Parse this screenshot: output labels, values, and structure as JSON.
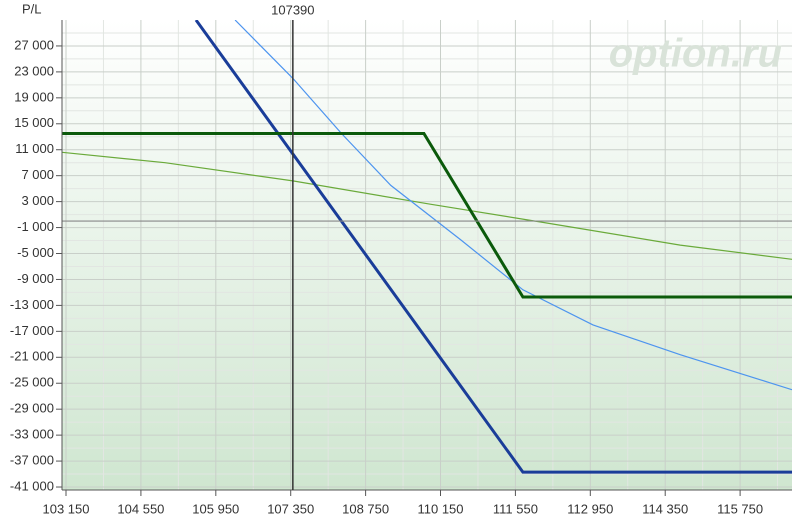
{
  "chart_data": {
    "type": "line",
    "y_label": "P/L",
    "watermark": "option.ru",
    "marker": {
      "value": 107390,
      "label": "107390"
    },
    "xlim": [
      103075,
      116720
    ],
    "ylim": [
      -41460,
      31000
    ],
    "xticks": [
      {
        "value": 103150,
        "label": "103 150"
      },
      {
        "value": 104550,
        "label": "104 550"
      },
      {
        "value": 105950,
        "label": "105 950"
      },
      {
        "value": 107350,
        "label": "107 350"
      },
      {
        "value": 108750,
        "label": "108 750"
      },
      {
        "value": 110150,
        "label": "110 150"
      },
      {
        "value": 111550,
        "label": "111 550"
      },
      {
        "value": 112950,
        "label": "112 950"
      },
      {
        "value": 114350,
        "label": "114 350"
      },
      {
        "value": 115750,
        "label": "115 750"
      }
    ],
    "yticks": [
      {
        "value": 27000,
        "label": "27 000"
      },
      {
        "value": 23000,
        "label": "23 000"
      },
      {
        "value": 19000,
        "label": "19 000"
      },
      {
        "value": 15000,
        "label": "15 000"
      },
      {
        "value": 11000,
        "label": "11 000"
      },
      {
        "value": 7000,
        "label": "7 000"
      },
      {
        "value": 3000,
        "label": "3 000"
      },
      {
        "value": -1000,
        "label": "-1 000"
      },
      {
        "value": -5000,
        "label": "-5 000"
      },
      {
        "value": -9000,
        "label": "-9 000"
      },
      {
        "value": -13000,
        "label": "-13 000"
      },
      {
        "value": -17000,
        "label": "-17 000"
      },
      {
        "value": -21000,
        "label": "-21 000"
      },
      {
        "value": -25000,
        "label": "-25 000"
      },
      {
        "value": -29000,
        "label": "-29 000"
      },
      {
        "value": -33000,
        "label": "-33 000"
      },
      {
        "value": -37000,
        "label": "-37 000"
      },
      {
        "value": -41000,
        "label": "-41 000"
      }
    ],
    "grid": true,
    "series": [
      {
        "color": "#6aaa3a",
        "width": 1.2,
        "x": [
          103075,
          105000,
          107390,
          109960,
          112020,
          114630,
          116720
        ],
        "values": [
          10600,
          9000,
          6200,
          2600,
          -150,
          -3700,
          -5900
        ]
      },
      {
        "color": "#4d94ef",
        "width": 1.2,
        "x": [
          106310,
          107390,
          108300,
          109220,
          110530,
          111690,
          113000,
          114630,
          116720
        ],
        "values": [
          31000,
          22000,
          13500,
          5500,
          -2900,
          -10600,
          -16000,
          -20600,
          -26000
        ]
      },
      {
        "color": "#1a3d99",
        "width": 3,
        "x": [
          105580,
          111690,
          116720
        ],
        "values": [
          31000,
          -38700,
          -38700
        ]
      },
      {
        "color": "#0b5a0b",
        "width": 3,
        "x": [
          103075,
          109840,
          111690,
          116720
        ],
        "values": [
          13500,
          13500,
          -11710,
          -11710
        ]
      }
    ]
  }
}
